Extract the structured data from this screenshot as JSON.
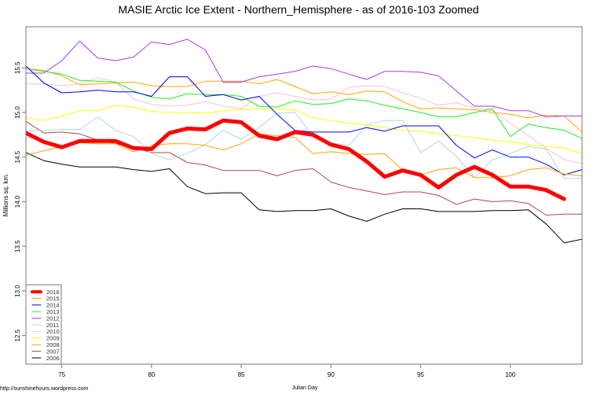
{
  "chart_data": {
    "type": "line",
    "title": "MASIE Arctic Ice Extent - Northern_Hemisphere - as of 2016-103 Zoomed",
    "xlabel": "Julian Day",
    "ylabel": "Millions sq. km.",
    "source": "http://sunshinehours.wordpress.com",
    "xlim": [
      73,
      104
    ],
    "ylim": [
      12.18,
      15.96
    ],
    "x_ticks": [
      75,
      80,
      85,
      90,
      95,
      100
    ],
    "y_ticks": [
      12.5,
      13.0,
      13.5,
      14.0,
      14.5,
      15.0,
      15.5
    ],
    "y_tick_labels": [
      "12.5",
      "13.0",
      "13.5",
      "14.0",
      "14.5",
      "15.0",
      "15.5"
    ],
    "grid": false,
    "legend_position": "bottom-left",
    "x_start": 73,
    "series": [
      {
        "name": "2016",
        "color": "#FF0000",
        "width": 5,
        "values": [
          14.77,
          14.67,
          14.61,
          14.68,
          14.68,
          14.68,
          14.6,
          14.59,
          14.77,
          14.82,
          14.81,
          14.91,
          14.89,
          14.74,
          14.7,
          14.78,
          14.75,
          14.64,
          14.59,
          14.45,
          14.28,
          14.35,
          14.3,
          14.16,
          14.3,
          14.39,
          14.3,
          14.17,
          14.17,
          14.13,
          14.03
        ]
      },
      {
        "name": "2015",
        "color": "#FFA500",
        "width": 1,
        "values": [
          14.52,
          14.57,
          14.62,
          14.66,
          14.65,
          14.65,
          14.56,
          14.63,
          14.65,
          14.65,
          14.63,
          14.58,
          14.65,
          14.76,
          14.74,
          14.72,
          14.54,
          14.56,
          14.54,
          14.53,
          14.54,
          14.35,
          14.3,
          14.36,
          14.38,
          14.27,
          14.27,
          14.29,
          14.36,
          14.38,
          14.31,
          14.29
        ]
      },
      {
        "name": "2014",
        "color": "#0000FF",
        "width": 1,
        "values": [
          15.52,
          15.33,
          15.22,
          15.23,
          15.25,
          15.23,
          15.23,
          15.18,
          15.4,
          15.4,
          15.18,
          15.2,
          15.14,
          15.18,
          14.98,
          14.8,
          14.78,
          14.78,
          14.78,
          14.83,
          14.79,
          14.85,
          14.85,
          14.85,
          14.63,
          14.49,
          14.58,
          14.5,
          14.5,
          14.42,
          14.3,
          14.36
        ]
      },
      {
        "name": "2013",
        "color": "#22EE22",
        "width": 1,
        "values": [
          15.49,
          15.46,
          15.43,
          15.36,
          15.35,
          15.34,
          15.24,
          15.17,
          15.15,
          15.21,
          15.2,
          15.2,
          15.18,
          15.07,
          15.06,
          15.13,
          15.09,
          15.1,
          15.15,
          15.13,
          15.08,
          15.04,
          15.0,
          14.95,
          14.95,
          15.0,
          15.04,
          14.73,
          14.87,
          14.83,
          14.8,
          14.71
        ]
      },
      {
        "name": "2012",
        "color": "#A838F0",
        "width": 1,
        "values": [
          15.44,
          15.44,
          15.58,
          15.8,
          15.61,
          15.58,
          15.62,
          15.79,
          15.76,
          15.82,
          15.7,
          15.34,
          15.34,
          15.4,
          15.43,
          15.46,
          15.52,
          15.49,
          15.43,
          15.37,
          15.46,
          15.46,
          15.45,
          15.41,
          15.24,
          15.07,
          15.07,
          15.02,
          15.02,
          14.95,
          14.96,
          14.96
        ]
      },
      {
        "name": "2011",
        "color": "#ADD8E6",
        "width": 1,
        "values": [
          14.79,
          14.8,
          14.81,
          14.81,
          14.95,
          14.8,
          14.73,
          14.54,
          14.47,
          14.54,
          14.64,
          14.8,
          14.7,
          14.83,
          14.99,
          15.0,
          14.73,
          14.66,
          14.63,
          14.86,
          14.91,
          14.91,
          14.55,
          14.68,
          14.51,
          14.27,
          14.47,
          14.54,
          14.62,
          14.59,
          14.26,
          14.26
        ]
      },
      {
        "name": "2010",
        "color": "#FFC0CB",
        "width": 1,
        "values": [
          15.32,
          15.32,
          15.3,
          15.32,
          15.39,
          15.34,
          15.15,
          15.09,
          15.07,
          15.08,
          15.12,
          15.07,
          15.04,
          15.18,
          15.22,
          15.18,
          15.14,
          15.15,
          15.28,
          15.3,
          15.29,
          15.22,
          15.16,
          15.08,
          15.11,
          15.05,
          15.02,
          14.88,
          14.74,
          14.6,
          14.47,
          14.43
        ]
      },
      {
        "name": "2009",
        "color": "#FFFF00",
        "width": 1,
        "values": [
          14.94,
          14.91,
          14.96,
          15.02,
          15.02,
          15.08,
          15.06,
          15.01,
          15.0,
          15.0,
          14.99,
          15.02,
          15.03,
          15.04,
          15.04,
          15.03,
          14.94,
          14.91,
          14.88,
          14.86,
          14.83,
          14.8,
          14.79,
          14.76,
          14.74,
          14.72,
          14.69,
          14.67,
          14.64,
          14.62,
          14.6,
          14.54
        ]
      },
      {
        "name": "2008",
        "color": "#FFA500",
        "width": 1,
        "values": [
          15.49,
          15.47,
          15.41,
          15.31,
          15.32,
          15.33,
          15.34,
          15.3,
          15.29,
          15.29,
          15.35,
          15.35,
          15.35,
          15.32,
          15.37,
          15.29,
          15.21,
          15.23,
          15.2,
          15.24,
          15.23,
          15.12,
          15.04,
          15.05,
          15.04,
          15.03,
          15.0,
          14.98,
          14.94,
          14.97,
          14.96,
          14.78
        ]
      },
      {
        "name": "2007",
        "color": "#B04848",
        "width": 1,
        "values": [
          14.9,
          14.77,
          14.78,
          14.76,
          14.69,
          14.65,
          14.61,
          14.55,
          14.55,
          14.44,
          14.41,
          14.35,
          14.35,
          14.35,
          14.29,
          14.35,
          14.37,
          14.22,
          14.16,
          14.12,
          14.08,
          14.11,
          14.11,
          14.07,
          13.97,
          14.03,
          14.0,
          14.01,
          13.98,
          13.85,
          13.86,
          13.86
        ]
      },
      {
        "name": "2006",
        "color": "#000000",
        "width": 1,
        "values": [
          14.55,
          14.46,
          14.42,
          14.39,
          14.39,
          14.39,
          14.36,
          14.34,
          14.37,
          14.17,
          14.09,
          14.1,
          14.1,
          13.91,
          13.89,
          13.9,
          13.9,
          13.92,
          13.84,
          13.78,
          13.86,
          13.92,
          13.92,
          13.89,
          13.89,
          13.89,
          13.9,
          13.9,
          13.91,
          13.75,
          13.54,
          13.58
        ]
      }
    ]
  }
}
